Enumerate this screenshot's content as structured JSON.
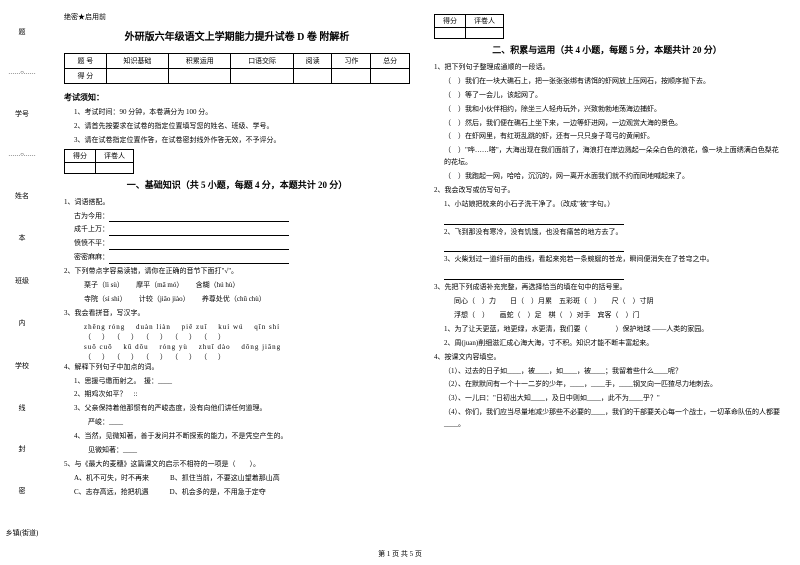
{
  "margin": {
    "labels": [
      "题",
      "学号",
      "姓名",
      "班级",
      "学校",
      "乡镇(街道)"
    ],
    "verticals": [
      "本",
      "内",
      "线",
      "封",
      "密"
    ],
    "dots": "……○……"
  },
  "secret": "绝密★启用前",
  "main_title": "外研版六年级语文上学期能力提升试卷 D 卷 附解析",
  "score_table": {
    "headers": [
      "题 号",
      "知识基础",
      "积累运用",
      "口语交际",
      "阅读",
      "习作",
      "总分"
    ],
    "row_label": "得 分"
  },
  "notice": {
    "heading": "考试须知：",
    "items": [
      "1、考试时间：90 分钟，本卷满分为 100 分。",
      "2、请首先按要求在试卷的指定位置填写您的姓名、班级、学号。",
      "3、请在试卷指定位置作答，在试卷密封线外作答无效，不予评分。"
    ]
  },
  "score_box_labels": [
    "得分",
    "评卷人"
  ],
  "section1": {
    "title": "一、基础知识（共 5 小题，每题 4 分，本题共计 20 分）",
    "q1": {
      "stem": "1、词语搭配。",
      "items": [
        "古为今用：",
        "成千上万：",
        "愤愤不平：",
        "密密麻麻："
      ]
    },
    "q2": {
      "stem": "2、下列带点字容易读错，请你在正确的音节下面打\"√\"。",
      "rows": [
        [
          "栗子（lì  sù）",
          "摩平（mā  mó）",
          "含糊（hú  hù）"
        ],
        [
          "寺院（sì  shì）",
          "计较（jiǎo jiào）",
          "养尊处优（chǔ  chù）"
        ]
      ]
    },
    "q3": {
      "stem": "3、我会看拼音，写汉字。",
      "pinyin": [
        "zhēng róng",
        "duàn liàn",
        "piě zuǐ",
        "kuí wú",
        "qīn shí"
      ],
      "pinyin2": [
        "suō  cuō",
        "kū dōu",
        "róng yù",
        "zhuī dào",
        "dōng jiāng"
      ]
    },
    "q4": {
      "stem": "4、解释下列句子中加点的词。",
      "items": [
        "1、思援弓缴而射之。　援：____",
        "2、期鸡次如平？　::",
        "3、父亲保持着他那惯有的严峻态度，没有向他们讲任何道理。",
        "　　严峻：____",
        "4、当然，见微知著，善于发问并不断探索的能力，不是凭空产生的。",
        "　　见微知著：____"
      ]
    },
    "q5": {
      "stem": "5、与《最大的麦穗》这篇课文的启示不相符的一项是（　　）。",
      "opts": [
        "A、机不可失，时不再来　　　B、抓住当前，不要这山望着那山高",
        "C、志存高远，抢把机遇　　　D、机会多的是，不用急于定夺"
      ]
    }
  },
  "section2": {
    "title": "二、积累与运用（共 4 小题，每题 5 分，本题共计 20 分）",
    "q1": {
      "stem": "1、把下列句子整理成通顺的一段话。",
      "items": [
        "（　）我们在一块大礁石上，把一张张张绑有诱饵的虾网放上压网石，按顺序抛下去。",
        "（　）等了一会儿，该起网了。",
        "（　）我和小伙伴相约，除坐三人轻舟玩外，兴致勃勃地荡海边捕虾。",
        "（　）然后，我们便在礁石上坐下来，一边等虾进网，一边观赏大海的景色。",
        "（　）在虾网里，有红斑乱跳的虾，还有一只只身子弯弓的黄闸虾。",
        "（　）\"哗……嗒\"，大海出现在我们面前了，海浪打在岸边溅起一朵朵白色的浪花，像一块上面绣满白色梨花的花坛。",
        "（　）我跑起一网，哈哈，沉沉的，网一离开水面我们就不约而同地喊起来了。"
      ]
    },
    "q2": {
      "stem": "2、我会改写或仿写句子。",
      "items": [
        "1、小站娘把枕来的小石子洗干净了。（改成\"被\"字句。）",
        "2、飞到那没有寒冷，没有饥饿，也没有痛苦的地方去了。",
        "3、火柴划过一道纤丽的曲线，看起来宛若一条蜿蜒的苍龙，瞬间便消失在了苍穹之中。"
      ]
    },
    "q3": {
      "stem": "3、先把下列成语补充完整，再选择恰当的填在句中的括号里。",
      "rows": [
        "同心（　）力　　日（　）月累　五彩斑（　）　　尺（　）寸阴",
        "浮想（　）　　画蛇（　）足　棋（　）对手　宾客（　）门"
      ],
      "sub": [
        "1、为了让天更蓝，地更绿，水更清，我们要（　　　　）保护地球 ——人类的家园。",
        "2、周(juan)削细滋汇成心海大海，寸不积。知识才能不断丰富起来。"
      ]
    },
    "q4": {
      "stem": "4、按课文内容填空。",
      "items": [
        "（1）、过去的日子如____，被____，如____，被____；我留着些什么____呢？",
        "（2）、在默默间有一个十一二岁的少年，____，____手，____钢叉向一匹猹尽力地刺去。",
        "（3）、一儿曰：\"日初出大知____，及日中则如____，此不为____乎？\"",
        "（4）、你们，我们应当尽量地减少那些不必要的____，我们的干部要关心每一个战士，一切革命队伍的人都要____。"
      ]
    }
  },
  "footer": "第 1 页 共 5 页"
}
